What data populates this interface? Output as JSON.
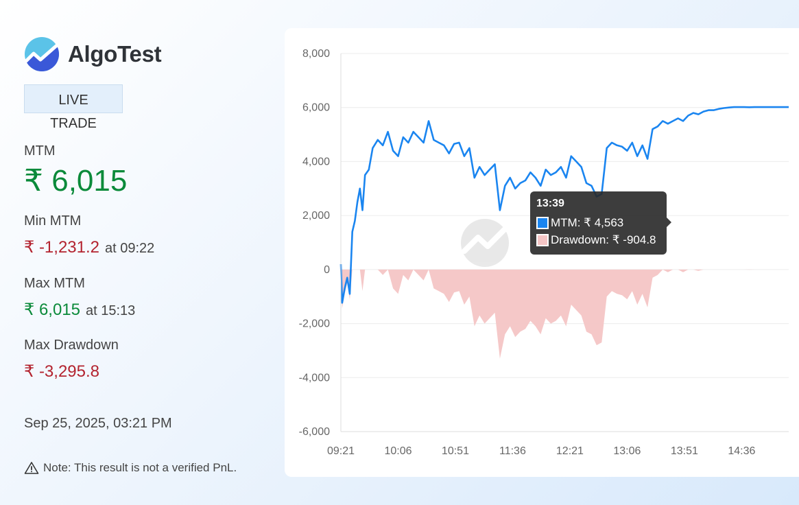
{
  "brand": {
    "name": "AlgoTest"
  },
  "status": {
    "live": "LIVE",
    "trade": "TRADE"
  },
  "stats": {
    "mtm_label": "MTM",
    "mtm_value": "₹ 6,015",
    "min_mtm_label": "Min MTM",
    "min_mtm_value": "₹ -1,231.2",
    "min_mtm_time": "at 09:22",
    "max_mtm_label": "Max MTM",
    "max_mtm_value": "₹ 6,015",
    "max_mtm_time": "at 15:13",
    "max_drawdown_label": "Max Drawdown",
    "max_drawdown_value": "₹ -3,295.8"
  },
  "timestamp": "Sep 25, 2025, 03:21 PM",
  "note": "Note: This result is not a verified PnL.",
  "colors": {
    "mtm_line": "#1a85f0",
    "drawdown_fill": "#f4c5c5",
    "positive": "#0b8a3a",
    "negative": "#b3232f"
  },
  "tooltip": {
    "title": "13:39",
    "mtm_text": "MTM: ₹ 4,563",
    "drawdown_text": "Drawdown: ₹ -904.8"
  },
  "chart_data": {
    "type": "line",
    "x_ticks": [
      "09:21",
      "10:06",
      "10:51",
      "11:36",
      "12:21",
      "13:06",
      "13:51",
      "14:36"
    ],
    "x_domain": [
      "09:21",
      "15:13"
    ],
    "y_ticks": [
      "8,000",
      "6,000",
      "4,000",
      "2,000",
      "0",
      "-2,000",
      "-4,000",
      "-6,000"
    ],
    "ylim": [
      -6000,
      8000
    ],
    "grid": true,
    "series": [
      {
        "name": "MTM",
        "type": "line",
        "x": [
          "09:21",
          "09:22",
          "09:24",
          "09:26",
          "09:28",
          "09:30",
          "09:32",
          "09:34",
          "09:36",
          "09:38",
          "09:40",
          "09:43",
          "09:46",
          "09:50",
          "09:54",
          "09:58",
          "10:02",
          "10:06",
          "10:10",
          "10:14",
          "10:18",
          "10:22",
          "10:26",
          "10:30",
          "10:34",
          "10:38",
          "10:42",
          "10:46",
          "10:50",
          "10:54",
          "10:58",
          "11:02",
          "11:06",
          "11:10",
          "11:14",
          "11:18",
          "11:22",
          "11:26",
          "11:30",
          "11:34",
          "11:38",
          "11:42",
          "11:46",
          "11:50",
          "11:54",
          "11:58",
          "12:02",
          "12:06",
          "12:10",
          "12:14",
          "12:18",
          "12:22",
          "12:26",
          "12:30",
          "12:34",
          "12:38",
          "12:42",
          "12:46",
          "12:50",
          "12:54",
          "12:58",
          "13:02",
          "13:06",
          "13:10",
          "13:14",
          "13:18",
          "13:22",
          "13:26",
          "13:30",
          "13:34",
          "13:38",
          "13:42",
          "13:46",
          "13:50",
          "13:54",
          "13:58",
          "14:02",
          "14:06",
          "14:10",
          "14:14",
          "14:18",
          "14:22",
          "14:26",
          "14:30",
          "14:34",
          "14:38",
          "14:42",
          "14:46",
          "14:50",
          "14:54",
          "14:58",
          "15:02",
          "15:06",
          "15:10",
          "15:13"
        ],
        "values": [
          200,
          -1231,
          -700,
          -300,
          -900,
          1400,
          1800,
          2500,
          3000,
          2200,
          3500,
          3700,
          4500,
          4800,
          4600,
          5100,
          4400,
          4200,
          4900,
          4700,
          5100,
          4900,
          4700,
          5500,
          4800,
          4700,
          4600,
          4300,
          4650,
          4700,
          4200,
          4500,
          3400,
          3800,
          3500,
          3700,
          3900,
          2200,
          3100,
          3400,
          3000,
          3200,
          3300,
          3600,
          3400,
          3100,
          3700,
          3500,
          3600,
          3800,
          3400,
          4200,
          4000,
          3800,
          3200,
          3100,
          2700,
          2800,
          4500,
          4700,
          4600,
          4550,
          4400,
          4700,
          4200,
          4600,
          4100,
          5200,
          5300,
          5500,
          5400,
          5500,
          5600,
          5500,
          5700,
          5800,
          5750,
          5850,
          5900,
          5900,
          5950,
          5980,
          6000,
          6015,
          6015,
          6015,
          6010,
          6015,
          6015,
          6015,
          6015,
          6015,
          6015,
          6015,
          6015
        ],
        "color": "#1a85f0"
      },
      {
        "name": "Drawdown",
        "type": "area",
        "x": [
          "09:21",
          "09:22",
          "09:24",
          "09:26",
          "09:28",
          "09:30",
          "09:32",
          "09:34",
          "09:36",
          "09:38",
          "09:40",
          "09:43",
          "09:46",
          "09:50",
          "09:54",
          "09:58",
          "10:02",
          "10:06",
          "10:10",
          "10:14",
          "10:18",
          "10:22",
          "10:26",
          "10:30",
          "10:34",
          "10:38",
          "10:42",
          "10:46",
          "10:50",
          "10:54",
          "10:58",
          "11:02",
          "11:06",
          "11:10",
          "11:14",
          "11:18",
          "11:22",
          "11:26",
          "11:30",
          "11:34",
          "11:38",
          "11:42",
          "11:46",
          "11:50",
          "11:54",
          "11:58",
          "12:02",
          "12:06",
          "12:10",
          "12:14",
          "12:18",
          "12:22",
          "12:26",
          "12:30",
          "12:34",
          "12:38",
          "12:42",
          "12:46",
          "12:50",
          "12:54",
          "12:58",
          "13:02",
          "13:06",
          "13:10",
          "13:14",
          "13:18",
          "13:22",
          "13:26",
          "13:30",
          "13:34",
          "13:38",
          "13:42",
          "13:46",
          "13:50",
          "13:54",
          "13:58",
          "14:02",
          "14:06",
          "14:10",
          "14:14",
          "14:18",
          "14:22",
          "14:26",
          "14:30",
          "14:34",
          "14:38",
          "14:42",
          "14:46",
          "14:50",
          "14:54",
          "14:58",
          "15:02",
          "15:06",
          "15:10",
          "15:13"
        ],
        "values": [
          0,
          -1431,
          -900,
          -500,
          -1100,
          0,
          0,
          0,
          0,
          -800,
          0,
          0,
          0,
          0,
          -200,
          0,
          -700,
          -900,
          -200,
          -400,
          0,
          -200,
          -400,
          0,
          -700,
          -800,
          -900,
          -1200,
          -850,
          -800,
          -1300,
          -1000,
          -2100,
          -1700,
          -2000,
          -1800,
          -1600,
          -3296,
          -2400,
          -2100,
          -2500,
          -2300,
          -2200,
          -1900,
          -2100,
          -2400,
          -1800,
          -2000,
          -1900,
          -1700,
          -2100,
          -1300,
          -1500,
          -1700,
          -2300,
          -2400,
          -2800,
          -2700,
          -1000,
          -800,
          -900,
          -950,
          -1100,
          -800,
          -1300,
          -900,
          -1400,
          -300,
          -200,
          0,
          -100,
          0,
          0,
          -100,
          0,
          0,
          -50,
          0,
          0,
          0,
          0,
          0,
          0,
          0,
          0,
          0,
          -5,
          0,
          0,
          0,
          0,
          0,
          0,
          0,
          0
        ],
        "color": "#f4c5c5"
      }
    ],
    "title": "",
    "xlabel": "",
    "ylabel": ""
  }
}
